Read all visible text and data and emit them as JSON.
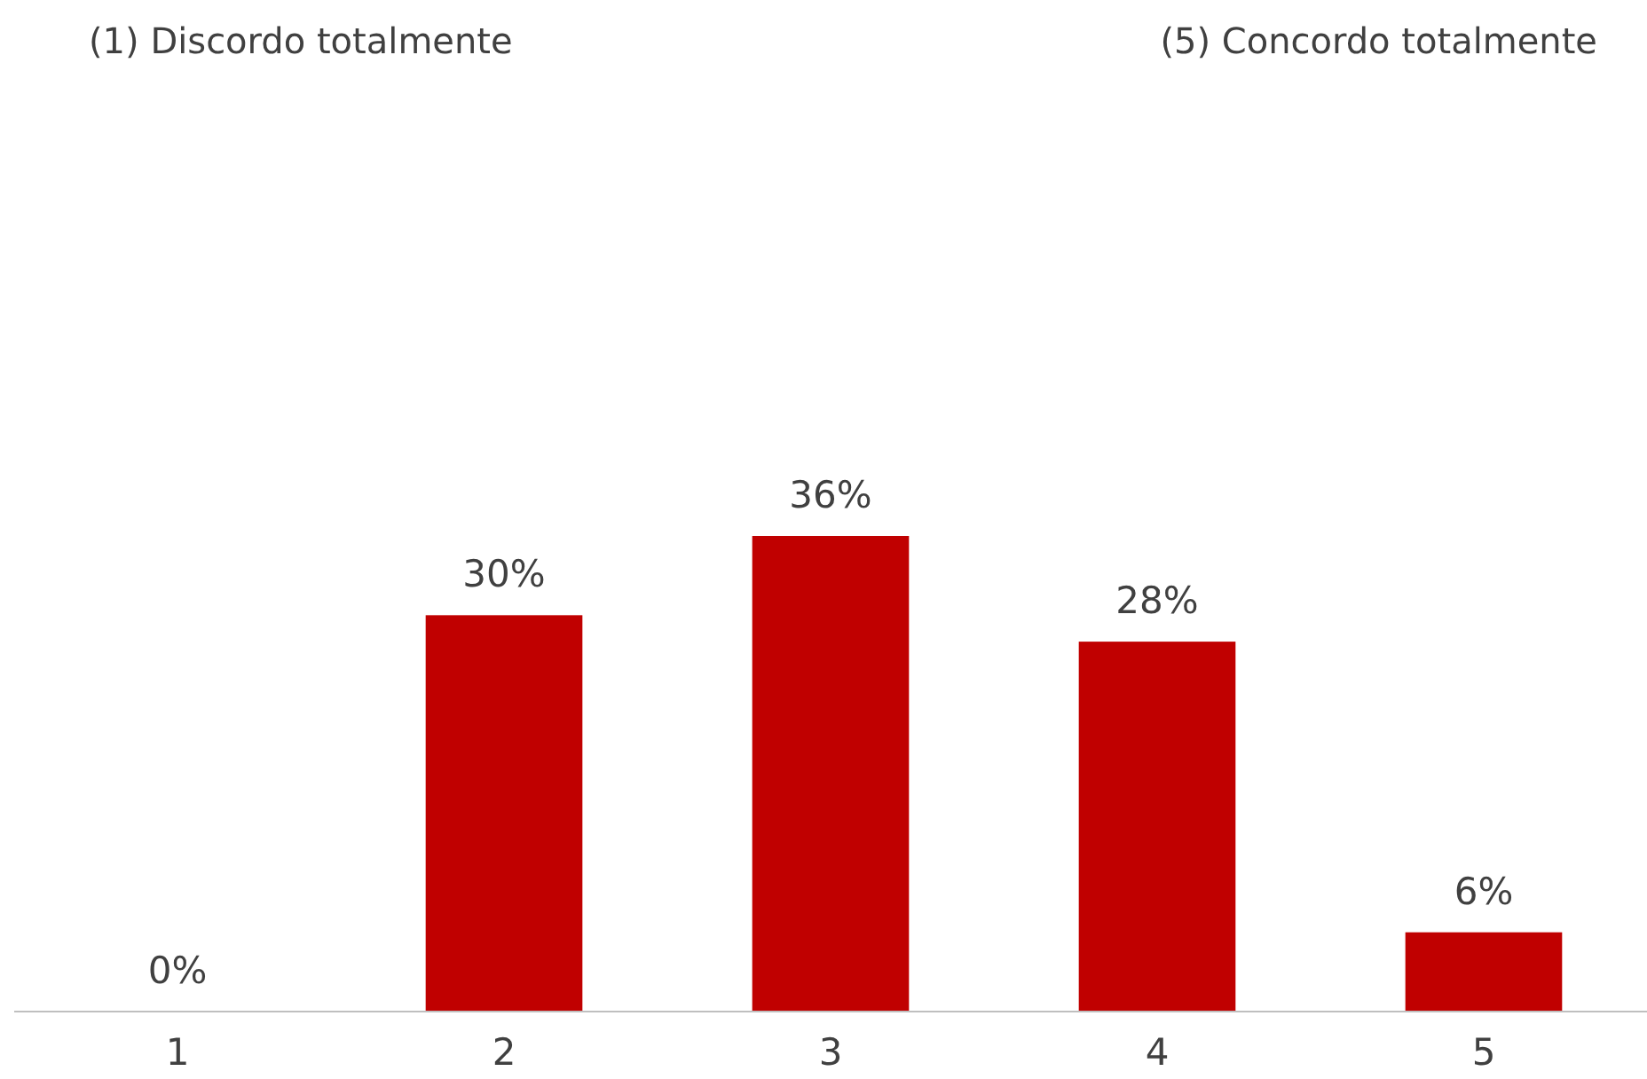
{
  "chart_data": {
    "type": "bar",
    "categories": [
      "1",
      "2",
      "3",
      "4",
      "5"
    ],
    "values": [
      0,
      30,
      36,
      28,
      6
    ],
    "color": "#c00000",
    "value_labels": [
      "0%",
      "30%",
      "36%",
      "28%",
      "6%"
    ],
    "annotations": [
      "(1) Discordo totalmente",
      "(5) Concordo totalmente"
    ]
  }
}
